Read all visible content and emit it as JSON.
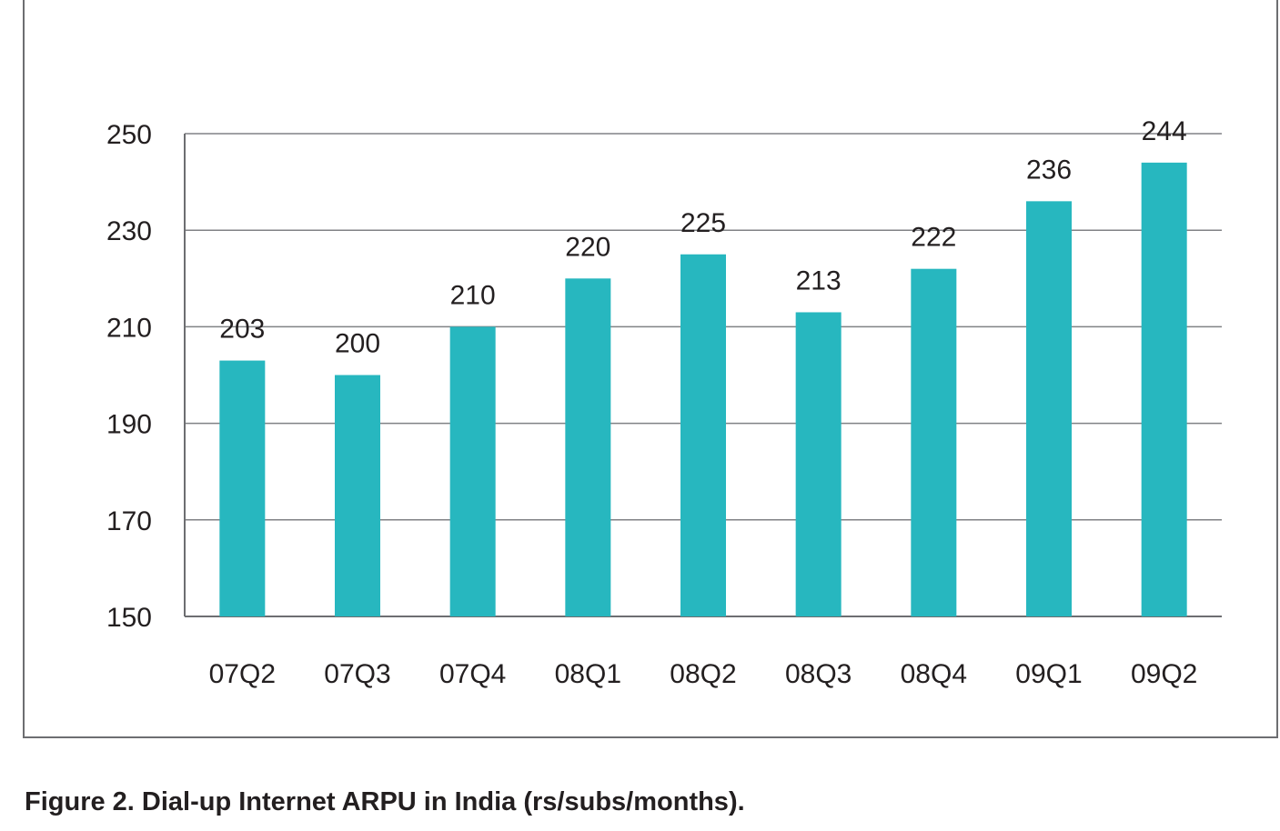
{
  "caption": "Figure 2. Dial-up Internet ARPU in India (rs/subs/months).",
  "chart_data": {
    "type": "bar",
    "categories": [
      "07Q2",
      "07Q3",
      "07Q4",
      "08Q1",
      "08Q2",
      "08Q3",
      "08Q4",
      "09Q1",
      "09Q2"
    ],
    "values": [
      203,
      200,
      210,
      220,
      225,
      213,
      222,
      236,
      244
    ],
    "data_labels": [
      "203",
      "200",
      "210",
      "220",
      "225",
      "213",
      "222",
      "236",
      "244"
    ],
    "ylim": [
      150,
      250
    ],
    "yticks": [
      150,
      170,
      190,
      210,
      230,
      250
    ],
    "ytick_labels": [
      "150",
      "170",
      "190",
      "210",
      "230",
      "250"
    ],
    "grid": true,
    "colors": {
      "bar": "#27b7bf",
      "grid": "#808285",
      "axis": "#6d6e71",
      "text": "#231f20"
    }
  }
}
